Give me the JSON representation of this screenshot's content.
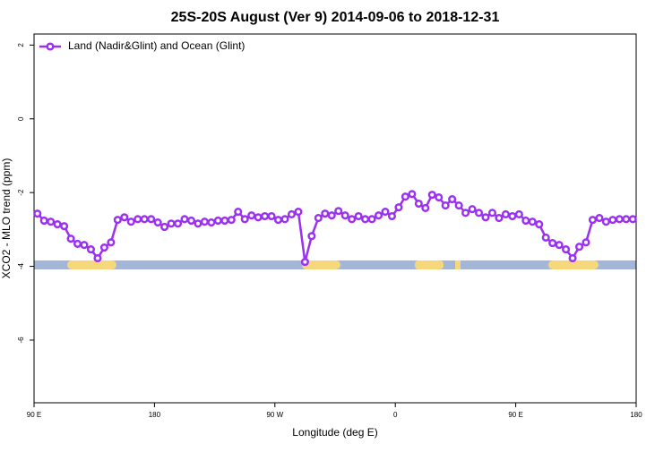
{
  "chart_data": {
    "type": "line",
    "title": "25S-20S August (Ver 9)   2014-09-06 to 2018-12-31",
    "x_label": "Longitude (deg E)",
    "y_label": "XCO2 - MLO trend (ppm)",
    "legend_position": "top-left",
    "x": [
      92.5,
      97.5,
      102.5,
      107.5,
      112.5,
      117.5,
      122.5,
      127.5,
      132.5,
      137.5,
      142.5,
      147.5,
      152.5,
      157.5,
      162.5,
      167.5,
      172.5,
      177.5,
      182.5,
      187.5,
      192.5,
      197.5,
      202.5,
      207.5,
      212.5,
      217.5,
      222.5,
      227.5,
      232.5,
      237.5,
      242.5,
      247.5,
      252.5,
      257.5,
      262.5,
      267.5,
      272.5,
      277.5,
      282.5,
      287.5,
      292.5,
      297.5,
      302.5,
      307.5,
      312.5,
      317.5,
      322.5,
      327.5,
      332.5,
      337.5,
      342.5,
      347.5,
      352.5,
      357.5,
      362.5,
      367.5,
      372.5,
      377.5,
      382.5,
      387.5,
      392.5,
      397.5,
      402.5,
      407.5,
      412.5,
      417.5,
      422.5,
      427.5,
      432.5,
      437.5,
      442.5,
      447.5,
      452.5,
      457.5,
      462.5,
      467.5,
      472.5,
      477.5,
      482.5,
      487.5,
      492.5,
      497.5,
      502.5,
      507.5,
      512.5,
      517.5,
      522.5,
      527.5,
      532.5,
      537.5
    ],
    "series": [
      {
        "name": "Land (Nadir&Glint) and Ocean (Glint)",
        "color": "#9b30f0",
        "values": [
          -2.57,
          -2.76,
          -2.79,
          -2.86,
          -2.91,
          -3.25,
          -3.39,
          -3.42,
          -3.54,
          -3.78,
          -3.49,
          -3.35,
          -2.74,
          -2.67,
          -2.79,
          -2.72,
          -2.72,
          -2.72,
          -2.81,
          -2.93,
          -2.84,
          -2.84,
          -2.72,
          -2.76,
          -2.84,
          -2.79,
          -2.81,
          -2.76,
          -2.76,
          -2.74,
          -2.52,
          -2.72,
          -2.62,
          -2.67,
          -2.64,
          -2.64,
          -2.74,
          -2.72,
          -2.59,
          -2.52,
          -3.88,
          -3.18,
          -2.69,
          -2.57,
          -2.62,
          -2.5,
          -2.62,
          -2.72,
          -2.64,
          -2.72,
          -2.72,
          -2.62,
          -2.52,
          -2.64,
          -2.4,
          -2.11,
          -2.04,
          -2.3,
          -2.42,
          -2.06,
          -2.13,
          -2.35,
          -2.18,
          -2.35,
          -2.55,
          -2.45,
          -2.55,
          -2.67,
          -2.55,
          -2.69,
          -2.59,
          -2.64,
          -2.59,
          -2.76,
          -2.79,
          -2.86,
          -3.22,
          -3.37,
          -3.42,
          -3.54,
          -3.78,
          -3.47,
          -3.35,
          -2.74,
          -2.69,
          -2.79,
          -2.74,
          -2.72,
          -2.72,
          -2.72
        ]
      }
    ],
    "xlim": [
      90,
      540
    ],
    "xticks": [
      {
        "value": 90,
        "label": "90 E"
      },
      180,
      {
        "value": 270,
        "label": "90 W"
      },
      {
        "value": 360,
        "label": "0"
      },
      {
        "value": 450,
        "label": "90 E"
      },
      {
        "value": 540,
        "label": "180"
      }
    ],
    "ylim": [
      -7.7,
      2.3
    ],
    "yticks": [
      2,
      0,
      -2,
      -4,
      -6
    ]
  }
}
